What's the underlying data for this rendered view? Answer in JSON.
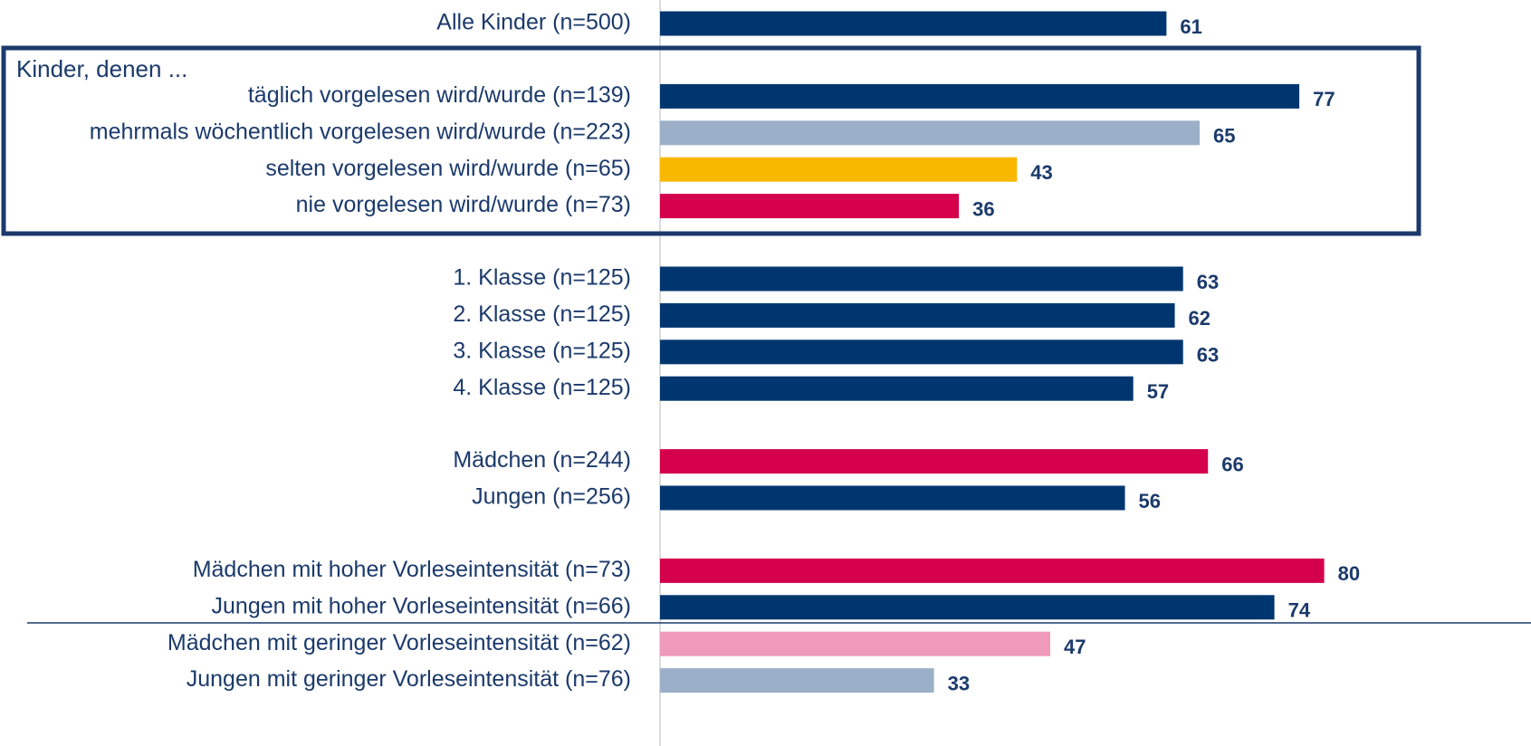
{
  "chart_data": {
    "type": "bar",
    "orientation": "horizontal",
    "group_label": "Kinder, denen ...",
    "categories": [
      "Alle Kinder (n=500)",
      "täglich vorgelesen wird/wurde (n=139)",
      "mehrmals wöchentlich vorgelesen wird/wurde (n=223)",
      "selten vorgelesen wird/wurde (n=65)",
      "nie vorgelesen wird/wurde (n=73)",
      "1. Klasse (n=125)",
      "2. Klasse (n=125)",
      "3. Klasse (n=125)",
      "4. Klasse (n=125)",
      "Mädchen (n=244)",
      "Jungen (n=256)",
      "Mädchen mit hoher Vorleseintensität (n=73)",
      "Jungen mit hoher Vorleseintensität (n=66)",
      "Mädchen mit geringer Vorleseintensität (n=62)",
      "Jungen mit geringer Vorleseintensität (n=76)"
    ],
    "values": [
      61,
      77,
      65,
      43,
      36,
      63,
      62,
      63,
      57,
      66,
      56,
      80,
      74,
      47,
      33
    ],
    "colors": [
      "#003670",
      "#003670",
      "#9bb0c8",
      "#f9b800",
      "#d4004c",
      "#003670",
      "#003670",
      "#003670",
      "#003670",
      "#d4004c",
      "#003670",
      "#d4004c",
      "#003670",
      "#f09ab9",
      "#9bb0c8"
    ],
    "xlim": [
      0,
      100
    ]
  }
}
